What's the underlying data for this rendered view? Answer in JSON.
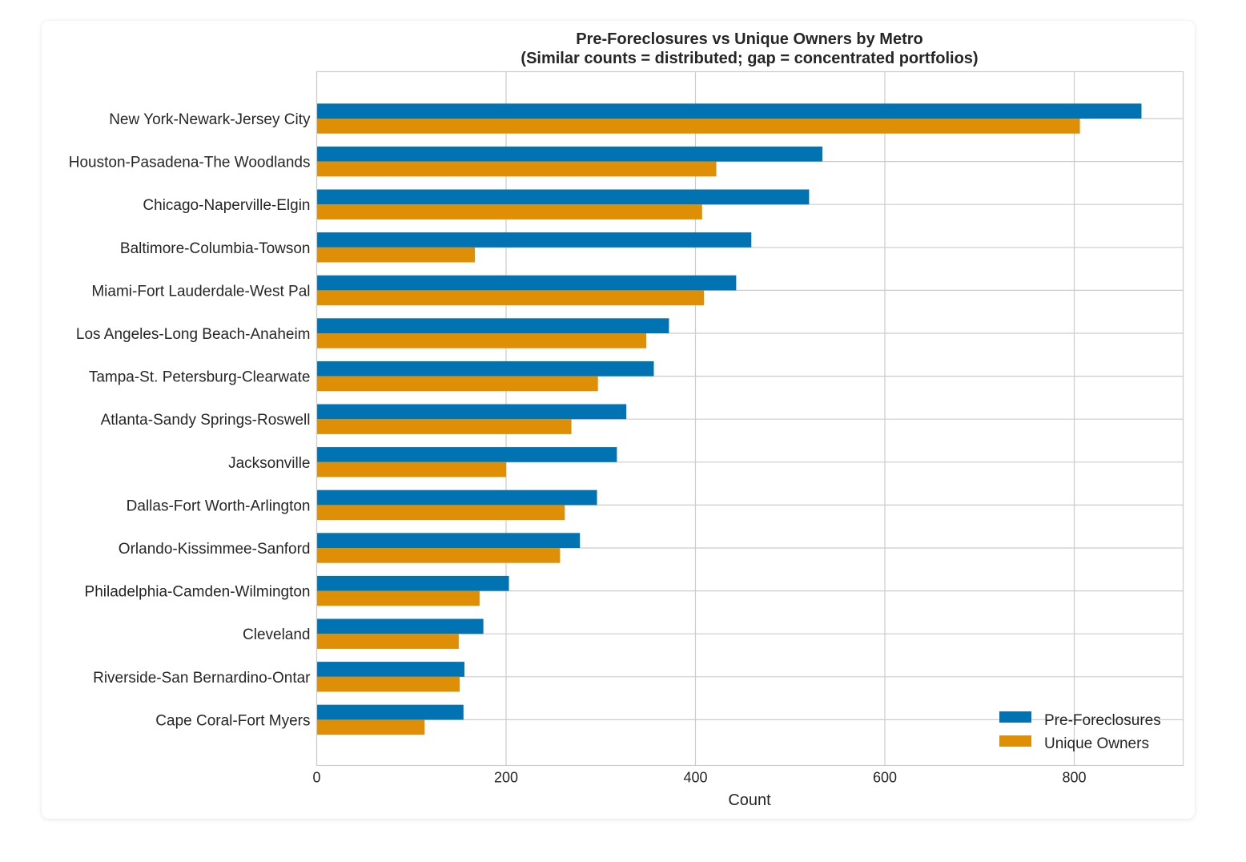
{
  "chart_data": {
    "type": "bar",
    "orientation": "horizontal",
    "title": "Pre-Foreclosures vs Unique Owners by Metro",
    "subtitle": "(Similar counts = distributed; gap = concentrated portfolios)",
    "xlabel": "Count",
    "ylabel": "",
    "xlim": [
      0,
      915
    ],
    "xticks": [
      0,
      200,
      400,
      600,
      800
    ],
    "grid": true,
    "legend_position": "bottom-right",
    "categories": [
      "New York-Newark-Jersey City",
      "Houston-Pasadena-The Woodlands",
      "Chicago-Naperville-Elgin",
      "Baltimore-Columbia-Towson",
      "Miami-Fort Lauderdale-West Pal",
      "Los Angeles-Long Beach-Anaheim",
      "Tampa-St. Petersburg-Clearwate",
      "Atlanta-Sandy Springs-Roswell",
      "Jacksonville",
      "Dallas-Fort Worth-Arlington",
      "Orlando-Kissimmee-Sanford",
      "Philadelphia-Camden-Wilmington",
      "Cleveland",
      "Riverside-San Bernardino-Ontar",
      "Cape Coral-Fort Myers"
    ],
    "series": [
      {
        "name": "Pre-Foreclosures",
        "color": "#0173b2",
        "values": [
          871,
          534,
          520,
          459,
          443,
          372,
          356,
          327,
          317,
          296,
          278,
          203,
          176,
          156,
          155
        ]
      },
      {
        "name": "Unique Owners",
        "color": "#de8f05",
        "values": [
          806,
          422,
          407,
          167,
          409,
          348,
          297,
          269,
          200,
          262,
          257,
          172,
          150,
          151,
          114
        ]
      }
    ]
  }
}
